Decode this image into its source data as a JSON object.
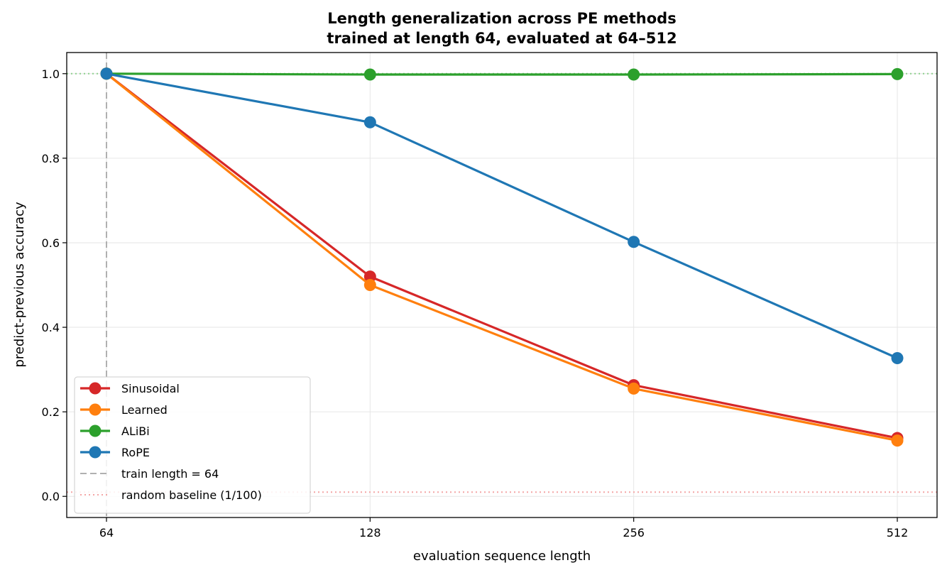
{
  "chart_data": {
    "type": "line",
    "title": "Length generalization across PE methods",
    "subtitle": "trained at length 64, evaluated at 64–512",
    "xlabel": "evaluation sequence length",
    "ylabel": "predict-previous accuracy",
    "x": [
      64,
      128,
      256,
      512
    ],
    "x_tick_labels": [
      "64",
      "128",
      "256",
      "512"
    ],
    "x_scale": "log2",
    "ylim": [
      -0.05,
      1.05
    ],
    "y_ticks": [
      0.0,
      0.2,
      0.4,
      0.6,
      0.8,
      1.0
    ],
    "y_tick_labels": [
      "0.0",
      "0.2",
      "0.4",
      "0.6",
      "0.8",
      "1.0"
    ],
    "grid": true,
    "legend_position": "lower-left",
    "series": [
      {
        "name": "Sinusoidal",
        "color": "#d62728",
        "values": [
          1.0,
          0.52,
          0.263,
          0.138
        ]
      },
      {
        "name": "Learned",
        "color": "#ff7f0e",
        "values": [
          1.0,
          0.5,
          0.255,
          0.132
        ]
      },
      {
        "name": "ALiBi",
        "color": "#2ca02c",
        "values": [
          1.0,
          0.998,
          0.998,
          0.999
        ]
      },
      {
        "name": "RoPE",
        "color": "#1f77b4",
        "values": [
          1.0,
          0.885,
          0.602,
          0.327
        ]
      }
    ],
    "reference_lines": [
      {
        "name": "train length = 64",
        "orientation": "vertical",
        "value": 64,
        "color": "#b0b0b0",
        "style": "dashed"
      },
      {
        "name": "random baseline (1/100)",
        "orientation": "horizontal",
        "value": 0.01,
        "color": "#f4a6a6",
        "style": "dotted"
      },
      {
        "name": "",
        "orientation": "horizontal",
        "value": 1.0,
        "color": "#8fd18f",
        "style": "dotted"
      }
    ]
  }
}
